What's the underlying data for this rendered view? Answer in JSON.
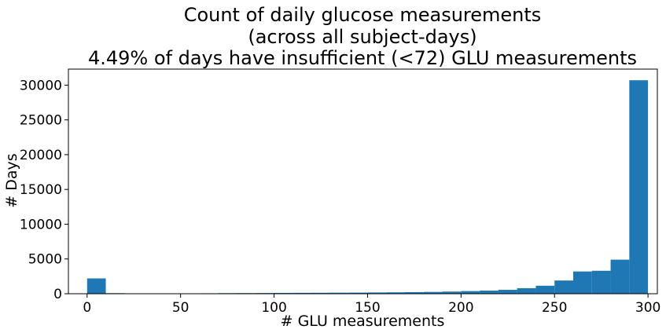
{
  "chart_data": {
    "type": "bar",
    "title_lines": [
      "Count of daily glucose measurements",
      "(across all subject-days)",
      "4.49% of days have insufficient (<72) GLU measurements"
    ],
    "xlabel": "# GLU measurements",
    "ylabel": "# Days",
    "xlim": [
      -10,
      305
    ],
    "ylim": [
      0,
      32300
    ],
    "xticks": [
      0,
      50,
      100,
      150,
      200,
      250,
      300
    ],
    "yticks": [
      0,
      5000,
      10000,
      15000,
      20000,
      25000,
      30000
    ],
    "bar_color": "#1f77b4",
    "bin_edges": [
      0,
      10,
      20,
      30,
      40,
      50,
      60,
      70,
      80,
      90,
      100,
      110,
      120,
      130,
      140,
      150,
      160,
      170,
      180,
      190,
      200,
      210,
      220,
      230,
      240,
      250,
      260,
      270,
      280,
      290
    ],
    "values": [
      2200,
      80,
      20,
      20,
      20,
      30,
      60,
      80,
      90,
      100,
      120,
      130,
      140,
      150,
      160,
      180,
      200,
      230,
      260,
      310,
      380,
      450,
      560,
      800,
      1150,
      1900,
      3200,
      3300,
      4900,
      30700
    ],
    "grid": false,
    "legend": "none"
  }
}
